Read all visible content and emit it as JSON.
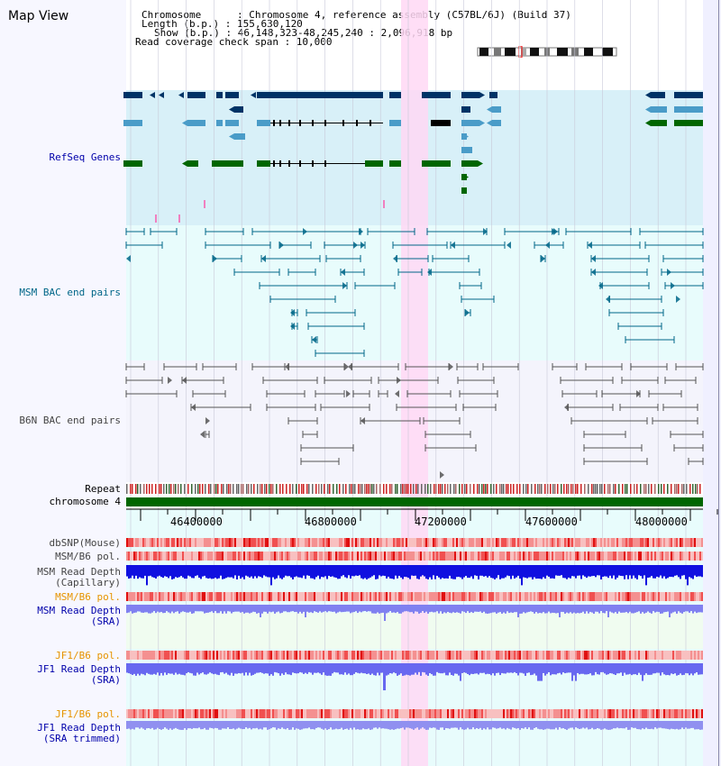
{
  "view_title": "Map View",
  "header": {
    "chromosome": "Chromosome      : Chromosome 4, reference assembly (C57BL/6J) (Build 37)",
    "length": "Length (b.p.) : 155,630,120",
    "show": "Show (b.p.) : 46,148,323-48,245,240 : 2,096,918 bp",
    "span": "Read coverage check span : 10,000"
  },
  "tracks": {
    "refseq": "RefSeq Genes",
    "msm_bac": "MSM BAC end pairs",
    "b6n_bac": "B6N BAC end pairs",
    "repeat": "Repeat",
    "chromosome": "chromosome 4",
    "dbsnp": "dbSNP(Mouse)",
    "msm_b6_pol_1": "MSM/B6 pol.",
    "msm_depth_cap": "MSM Read Depth\n(Capillary)",
    "msm_b6_pol_2": "MSM/B6 pol.",
    "msm_depth_sra": "MSM Read Depth\n(SRA)",
    "jf1_b6_pol_1": "JF1/B6 pol.",
    "jf1_depth_sra": "JF1 Read Depth\n(SRA)",
    "jf1_b6_pol_2": "JF1/B6 pol.",
    "jf1_depth_trim": "JF1 Read Depth\n(SRA trimmed)"
  },
  "ruler": {
    "ticks": [
      "46400000",
      "46800000",
      "47200000",
      "47600000",
      "48000000"
    ]
  },
  "colors": {
    "refseq_bg": "#d8f0f8",
    "msm_bg": "#e8fcfc",
    "b6n_bg": "#f4f4fc",
    "highlight": "#ffd8f4",
    "gene_dark": "#003366",
    "gene_mid": "#4a9cc8",
    "gene_green": "#006600",
    "msm_line": "#006688",
    "b6n_line": "#555555",
    "chrom_green": "#006600",
    "depth_blue": "#1010e0",
    "depth_light": "#8080f0"
  }
}
